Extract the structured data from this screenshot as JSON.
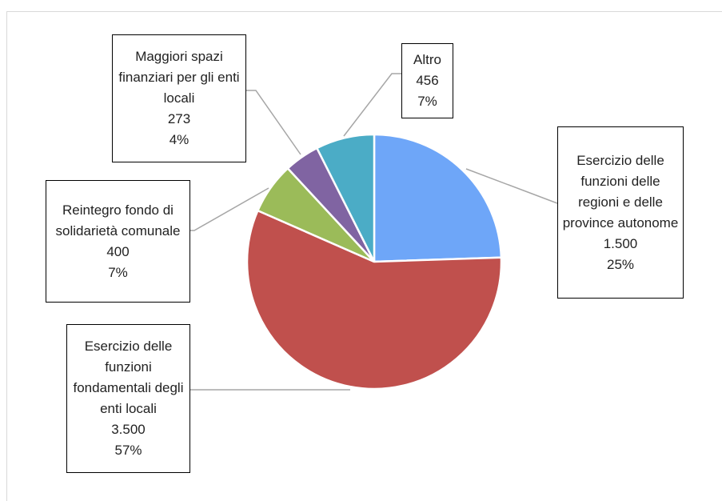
{
  "chart_data": {
    "type": "pie",
    "categories": [
      "Esercizio delle funzioni delle regioni e delle province autonome",
      "Esercizio delle funzioni fondamentali degli enti locali",
      "Reintegro fondo di solidarietà comunale",
      "Maggiori spazi finanziari per gli enti locali",
      "Altro"
    ],
    "values": [
      1500,
      3500,
      400,
      273,
      456
    ],
    "value_labels": [
      "1.500",
      "3.500",
      "400",
      "273",
      "456"
    ],
    "percentages": [
      25,
      57,
      7,
      4,
      7
    ],
    "percentage_labels": [
      "25%",
      "57%",
      "7%",
      "4%",
      "7%"
    ],
    "colors": [
      "#6ea6f8",
      "#c0504d",
      "#9bbb59",
      "#8064a2",
      "#4bacc6"
    ]
  }
}
